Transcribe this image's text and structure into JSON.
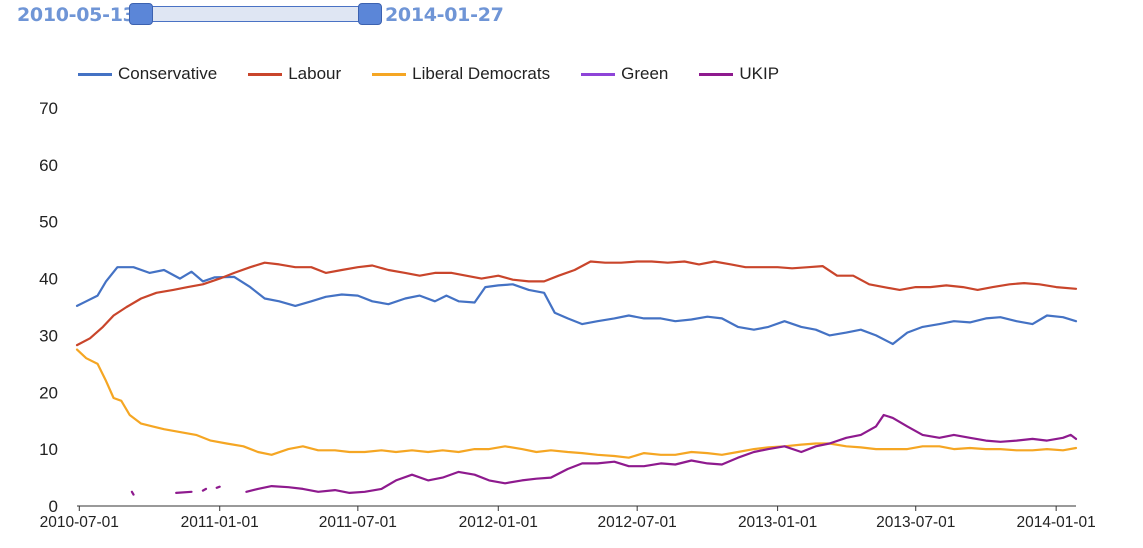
{
  "date_range": {
    "start": "2010-05-13",
    "end": "2014-01-27"
  },
  "chart_data": {
    "type": "line",
    "title": "",
    "xlabel": "",
    "ylabel": "",
    "ylim": [
      0,
      70
    ],
    "yticks": [
      0,
      10,
      20,
      30,
      40,
      50,
      60,
      70
    ],
    "x_domain": [
      "2010-06-28",
      "2014-01-27"
    ],
    "x_ticks": [
      {
        "date": "2010-07-01",
        "label": "2010-07-01"
      },
      {
        "date": "2011-01-01",
        "label": "2011-01-01"
      },
      {
        "date": "2011-07-01",
        "label": "2011-07-01"
      },
      {
        "date": "2012-01-01",
        "label": "2012-01-01"
      },
      {
        "date": "2012-07-01",
        "label": "2012-07-01"
      },
      {
        "date": "2013-01-01",
        "label": "2013-01-01"
      },
      {
        "date": "2013-07-01",
        "label": "2013-07-01"
      },
      {
        "date": "2014-01-01",
        "label": "2014-01-01"
      }
    ],
    "legend_position": "top-left",
    "series": [
      {
        "name": "Conservative",
        "color": "#4472c4",
        "points": [
          [
            "2010-06-28",
            35.2
          ],
          [
            "2010-07-10",
            36.0
          ],
          [
            "2010-07-25",
            37.0
          ],
          [
            "2010-08-05",
            39.5
          ],
          [
            "2010-08-20",
            42.0
          ],
          [
            "2010-09-10",
            42.0
          ],
          [
            "2010-10-01",
            41.0
          ],
          [
            "2010-10-20",
            41.5
          ],
          [
            "2010-11-10",
            40.0
          ],
          [
            "2010-11-25",
            41.2
          ],
          [
            "2010-12-10",
            39.5
          ],
          [
            "2010-12-25",
            40.2
          ],
          [
            "2011-01-20",
            40.3
          ],
          [
            "2011-02-10",
            38.5
          ],
          [
            "2011-03-01",
            36.5
          ],
          [
            "2011-03-20",
            36.0
          ],
          [
            "2011-04-10",
            35.2
          ],
          [
            "2011-05-01",
            36.0
          ],
          [
            "2011-05-20",
            36.8
          ],
          [
            "2011-06-10",
            37.2
          ],
          [
            "2011-07-01",
            37.0
          ],
          [
            "2011-07-20",
            36.0
          ],
          [
            "2011-08-10",
            35.5
          ],
          [
            "2011-09-01",
            36.5
          ],
          [
            "2011-09-20",
            37.0
          ],
          [
            "2011-10-10",
            36.0
          ],
          [
            "2011-10-25",
            37.0
          ],
          [
            "2011-11-10",
            36.0
          ],
          [
            "2011-12-01",
            35.8
          ],
          [
            "2011-12-15",
            38.5
          ],
          [
            "2012-01-01",
            38.8
          ],
          [
            "2012-01-20",
            39.0
          ],
          [
            "2012-02-10",
            38.0
          ],
          [
            "2012-03-01",
            37.5
          ],
          [
            "2012-03-15",
            34.0
          ],
          [
            "2012-04-01",
            33.0
          ],
          [
            "2012-04-20",
            32.0
          ],
          [
            "2012-05-10",
            32.5
          ],
          [
            "2012-06-01",
            33.0
          ],
          [
            "2012-06-20",
            33.5
          ],
          [
            "2012-07-10",
            33.0
          ],
          [
            "2012-08-01",
            33.0
          ],
          [
            "2012-08-20",
            32.5
          ],
          [
            "2012-09-10",
            32.8
          ],
          [
            "2012-10-01",
            33.3
          ],
          [
            "2012-10-20",
            33.0
          ],
          [
            "2012-11-10",
            31.5
          ],
          [
            "2012-12-01",
            31.0
          ],
          [
            "2012-12-20",
            31.5
          ],
          [
            "2013-01-10",
            32.5
          ],
          [
            "2013-02-01",
            31.5
          ],
          [
            "2013-02-20",
            31.0
          ],
          [
            "2013-03-10",
            30.0
          ],
          [
            "2013-04-01",
            30.5
          ],
          [
            "2013-04-20",
            31.0
          ],
          [
            "2013-05-10",
            30.0
          ],
          [
            "2013-06-01",
            28.5
          ],
          [
            "2013-06-20",
            30.5
          ],
          [
            "2013-07-10",
            31.5
          ],
          [
            "2013-08-01",
            32.0
          ],
          [
            "2013-08-20",
            32.5
          ],
          [
            "2013-09-10",
            32.3
          ],
          [
            "2013-10-01",
            33.0
          ],
          [
            "2013-10-20",
            33.2
          ],
          [
            "2013-11-10",
            32.5
          ],
          [
            "2013-12-01",
            32.0
          ],
          [
            "2013-12-20",
            33.5
          ],
          [
            "2014-01-10",
            33.2
          ],
          [
            "2014-01-27",
            32.5
          ]
        ]
      },
      {
        "name": "Labour",
        "color": "#c9452b",
        "points": [
          [
            "2010-06-28",
            28.3
          ],
          [
            "2010-07-15",
            29.5
          ],
          [
            "2010-08-01",
            31.5
          ],
          [
            "2010-08-15",
            33.5
          ],
          [
            "2010-09-01",
            35.0
          ],
          [
            "2010-09-20",
            36.5
          ],
          [
            "2010-10-10",
            37.5
          ],
          [
            "2010-11-01",
            38.0
          ],
          [
            "2010-11-20",
            38.5
          ],
          [
            "2010-12-10",
            39.0
          ],
          [
            "2011-01-01",
            40.0
          ],
          [
            "2011-01-20",
            41.0
          ],
          [
            "2011-02-10",
            42.0
          ],
          [
            "2011-03-01",
            42.8
          ],
          [
            "2011-03-20",
            42.5
          ],
          [
            "2011-04-10",
            42.0
          ],
          [
            "2011-05-01",
            42.0
          ],
          [
            "2011-05-20",
            41.0
          ],
          [
            "2011-06-10",
            41.5
          ],
          [
            "2011-07-01",
            42.0
          ],
          [
            "2011-07-20",
            42.3
          ],
          [
            "2011-08-10",
            41.5
          ],
          [
            "2011-09-01",
            41.0
          ],
          [
            "2011-09-20",
            40.5
          ],
          [
            "2011-10-10",
            41.0
          ],
          [
            "2011-11-01",
            41.0
          ],
          [
            "2011-11-20",
            40.5
          ],
          [
            "2011-12-10",
            40.0
          ],
          [
            "2012-01-01",
            40.5
          ],
          [
            "2012-01-20",
            39.8
          ],
          [
            "2012-02-10",
            39.5
          ],
          [
            "2012-03-01",
            39.5
          ],
          [
            "2012-03-20",
            40.5
          ],
          [
            "2012-04-10",
            41.5
          ],
          [
            "2012-05-01",
            43.0
          ],
          [
            "2012-05-20",
            42.8
          ],
          [
            "2012-06-10",
            42.8
          ],
          [
            "2012-07-01",
            43.0
          ],
          [
            "2012-07-20",
            43.0
          ],
          [
            "2012-08-10",
            42.8
          ],
          [
            "2012-09-01",
            43.0
          ],
          [
            "2012-09-20",
            42.5
          ],
          [
            "2012-10-10",
            43.0
          ],
          [
            "2012-11-01",
            42.5
          ],
          [
            "2012-11-20",
            42.0
          ],
          [
            "2012-12-10",
            42.0
          ],
          [
            "2013-01-01",
            42.0
          ],
          [
            "2013-01-20",
            41.8
          ],
          [
            "2013-02-10",
            42.0
          ],
          [
            "2013-03-01",
            42.2
          ],
          [
            "2013-03-20",
            40.5
          ],
          [
            "2013-04-10",
            40.5
          ],
          [
            "2013-05-01",
            39.0
          ],
          [
            "2013-05-20",
            38.5
          ],
          [
            "2013-06-10",
            38.0
          ],
          [
            "2013-07-01",
            38.5
          ],
          [
            "2013-07-20",
            38.5
          ],
          [
            "2013-08-10",
            38.8
          ],
          [
            "2013-09-01",
            38.5
          ],
          [
            "2013-09-20",
            38.0
          ],
          [
            "2013-10-10",
            38.5
          ],
          [
            "2013-11-01",
            39.0
          ],
          [
            "2013-11-20",
            39.2
          ],
          [
            "2013-12-10",
            39.0
          ],
          [
            "2014-01-01",
            38.5
          ],
          [
            "2014-01-27",
            38.2
          ]
        ]
      },
      {
        "name": "Liberal Democrats",
        "color": "#f5a623",
        "points": [
          [
            "2010-06-28",
            27.5
          ],
          [
            "2010-07-10",
            26.0
          ],
          [
            "2010-07-25",
            25.0
          ],
          [
            "2010-08-05",
            22.0
          ],
          [
            "2010-08-15",
            19.0
          ],
          [
            "2010-08-25",
            18.5
          ],
          [
            "2010-09-05",
            16.0
          ],
          [
            "2010-09-20",
            14.5
          ],
          [
            "2010-10-05",
            14.0
          ],
          [
            "2010-10-20",
            13.5
          ],
          [
            "2010-11-10",
            13.0
          ],
          [
            "2010-12-01",
            12.5
          ],
          [
            "2010-12-20",
            11.5
          ],
          [
            "2011-01-10",
            11.0
          ],
          [
            "2011-02-01",
            10.5
          ],
          [
            "2011-02-20",
            9.5
          ],
          [
            "2011-03-10",
            9.0
          ],
          [
            "2011-04-01",
            10.0
          ],
          [
            "2011-04-20",
            10.5
          ],
          [
            "2011-05-10",
            9.8
          ],
          [
            "2011-06-01",
            9.8
          ],
          [
            "2011-06-20",
            9.5
          ],
          [
            "2011-07-10",
            9.5
          ],
          [
            "2011-08-01",
            9.8
          ],
          [
            "2011-08-20",
            9.5
          ],
          [
            "2011-09-10",
            9.8
          ],
          [
            "2011-10-01",
            9.5
          ],
          [
            "2011-10-20",
            9.8
          ],
          [
            "2011-11-10",
            9.5
          ],
          [
            "2011-12-01",
            10.0
          ],
          [
            "2011-12-20",
            10.0
          ],
          [
            "2012-01-10",
            10.5
          ],
          [
            "2012-02-01",
            10.0
          ],
          [
            "2012-02-20",
            9.5
          ],
          [
            "2012-03-10",
            9.8
          ],
          [
            "2012-04-01",
            9.5
          ],
          [
            "2012-04-20",
            9.3
          ],
          [
            "2012-05-10",
            9.0
          ],
          [
            "2012-06-01",
            8.8
          ],
          [
            "2012-06-20",
            8.5
          ],
          [
            "2012-07-10",
            9.3
          ],
          [
            "2012-08-01",
            9.0
          ],
          [
            "2012-08-20",
            9.0
          ],
          [
            "2012-09-10",
            9.5
          ],
          [
            "2012-10-01",
            9.3
          ],
          [
            "2012-10-20",
            9.0
          ],
          [
            "2012-11-10",
            9.5
          ],
          [
            "2012-12-01",
            10.0
          ],
          [
            "2012-12-20",
            10.3
          ],
          [
            "2013-01-10",
            10.5
          ],
          [
            "2013-02-01",
            10.8
          ],
          [
            "2013-02-20",
            11.0
          ],
          [
            "2013-03-10",
            11.0
          ],
          [
            "2013-04-01",
            10.5
          ],
          [
            "2013-04-20",
            10.3
          ],
          [
            "2013-05-10",
            10.0
          ],
          [
            "2013-06-01",
            10.0
          ],
          [
            "2013-06-20",
            10.0
          ],
          [
            "2013-07-10",
            10.5
          ],
          [
            "2013-08-01",
            10.5
          ],
          [
            "2013-08-20",
            10.0
          ],
          [
            "2013-09-10",
            10.2
          ],
          [
            "2013-10-01",
            10.0
          ],
          [
            "2013-10-20",
            10.0
          ],
          [
            "2013-11-10",
            9.8
          ],
          [
            "2013-12-01",
            9.8
          ],
          [
            "2013-12-20",
            10.0
          ],
          [
            "2014-01-10",
            9.8
          ],
          [
            "2014-01-27",
            10.2
          ]
        ]
      },
      {
        "name": "Green",
        "color": "#8e44d8",
        "points": []
      },
      {
        "name": "UKIP",
        "color": "#8e1a8e",
        "points": [
          [
            "2010-09-08",
            2.5
          ],
          [
            "2010-09-10",
            2.0
          ],
          null,
          [
            "2010-11-05",
            2.3
          ],
          [
            "2010-11-25",
            2.5
          ],
          null,
          [
            "2010-12-10",
            2.7
          ],
          [
            "2010-12-14",
            3.0
          ],
          null,
          [
            "2010-12-28",
            3.2
          ],
          [
            "2011-01-01",
            3.4
          ],
          null,
          [
            "2011-02-05",
            2.5
          ],
          [
            "2011-02-20",
            3.0
          ],
          [
            "2011-03-10",
            3.5
          ],
          [
            "2011-04-01",
            3.3
          ],
          [
            "2011-04-20",
            3.0
          ],
          [
            "2011-05-10",
            2.5
          ],
          [
            "2011-06-01",
            2.8
          ],
          [
            "2011-06-20",
            2.3
          ],
          [
            "2011-07-10",
            2.5
          ],
          [
            "2011-08-01",
            3.0
          ],
          [
            "2011-08-20",
            4.5
          ],
          [
            "2011-09-10",
            5.5
          ],
          [
            "2011-10-01",
            4.5
          ],
          [
            "2011-10-20",
            5.0
          ],
          [
            "2011-11-10",
            6.0
          ],
          [
            "2011-12-01",
            5.5
          ],
          [
            "2011-12-20",
            4.5
          ],
          [
            "2012-01-10",
            4.0
          ],
          [
            "2012-02-01",
            4.5
          ],
          [
            "2012-02-20",
            4.8
          ],
          [
            "2012-03-10",
            5.0
          ],
          [
            "2012-04-01",
            6.5
          ],
          [
            "2012-04-20",
            7.5
          ],
          [
            "2012-05-10",
            7.5
          ],
          [
            "2012-06-01",
            7.8
          ],
          [
            "2012-06-20",
            7.0
          ],
          [
            "2012-07-10",
            7.0
          ],
          [
            "2012-08-01",
            7.5
          ],
          [
            "2012-08-20",
            7.3
          ],
          [
            "2012-09-10",
            8.0
          ],
          [
            "2012-10-01",
            7.5
          ],
          [
            "2012-10-20",
            7.3
          ],
          [
            "2012-11-10",
            8.5
          ],
          [
            "2012-12-01",
            9.5
          ],
          [
            "2012-12-20",
            10.0
          ],
          [
            "2013-01-10",
            10.5
          ],
          [
            "2013-02-01",
            9.5
          ],
          [
            "2013-02-20",
            10.5
          ],
          [
            "2013-03-10",
            11.0
          ],
          [
            "2013-04-01",
            12.0
          ],
          [
            "2013-04-20",
            12.5
          ],
          [
            "2013-05-10",
            14.0
          ],
          [
            "2013-05-20",
            16.0
          ],
          [
            "2013-06-01",
            15.5
          ],
          [
            "2013-06-20",
            14.0
          ],
          [
            "2013-07-10",
            12.5
          ],
          [
            "2013-08-01",
            12.0
          ],
          [
            "2013-08-20",
            12.5
          ],
          [
            "2013-09-10",
            12.0
          ],
          [
            "2013-10-01",
            11.5
          ],
          [
            "2013-10-20",
            11.3
          ],
          [
            "2013-11-10",
            11.5
          ],
          [
            "2013-12-01",
            11.8
          ],
          [
            "2013-12-20",
            11.5
          ],
          [
            "2014-01-10",
            12.0
          ],
          [
            "2014-01-20",
            12.5
          ],
          [
            "2014-01-27",
            11.8
          ]
        ]
      }
    ]
  }
}
